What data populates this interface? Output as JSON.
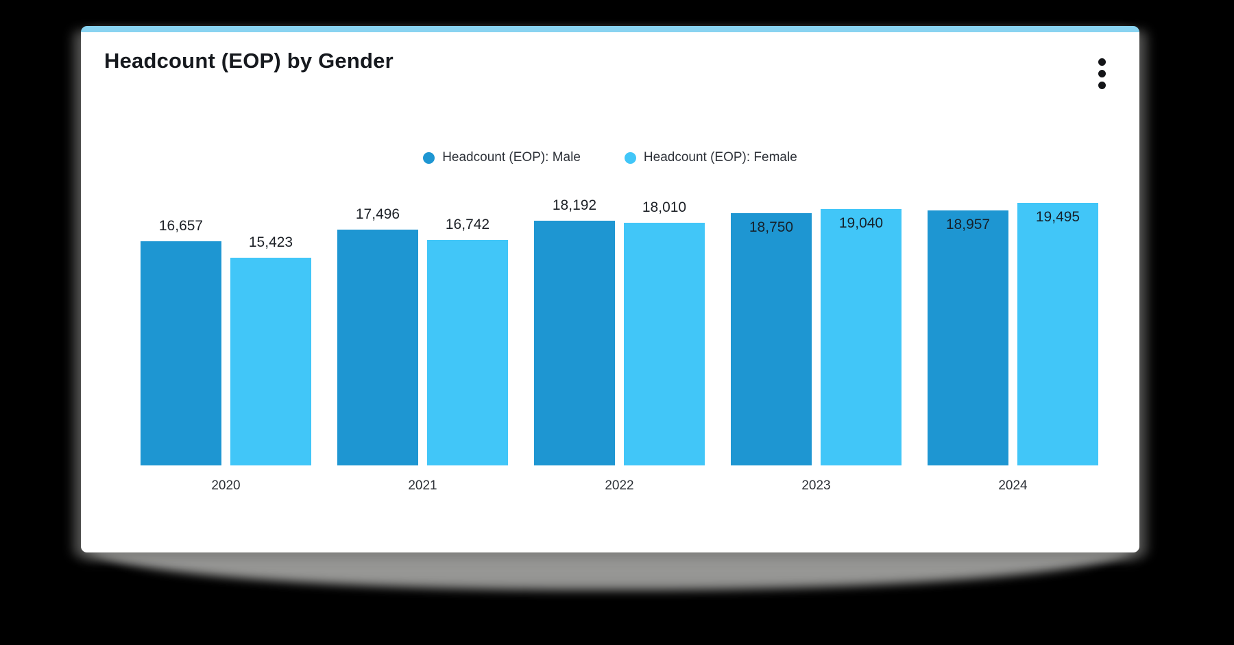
{
  "header": {
    "title": "Headcount (EOP) by Gender",
    "menu_icon": "kebab-vertical"
  },
  "legend": {
    "items": [
      {
        "label": "Headcount (EOP): Male",
        "color": "#1E96D2"
      },
      {
        "label": "Headcount (EOP): Female",
        "color": "#41C6F8"
      }
    ]
  },
  "chart_data": {
    "type": "bar",
    "title": "Headcount (EOP) by Gender",
    "categories": [
      "2020",
      "2021",
      "2022",
      "2023",
      "2024"
    ],
    "series": [
      {
        "name": "Headcount (EOP): Male",
        "color": "#1E96D2",
        "values": [
          16657,
          17496,
          18192,
          18750,
          18957
        ]
      },
      {
        "name": "Headcount (EOP): Female",
        "color": "#41C6F8",
        "values": [
          15423,
          16742,
          18010,
          19040,
          19495
        ]
      }
    ],
    "value_label_position_by_category": [
      "above",
      "above",
      "above",
      "inside",
      "inside"
    ],
    "value_label_format": "#,###",
    "ylim": [
      0,
      19495
    ],
    "grid": false,
    "axis_lines": false,
    "legend_position": "top",
    "xlabel": "",
    "ylabel": ""
  },
  "colors": {
    "page_background": "#000000",
    "card_background": "#FFFFFF",
    "accent_top_border": "#89D3F1",
    "male_bar": "#1E96D2",
    "female_bar": "#41C6F8",
    "floor_shadow": "#A0A09E",
    "title_text": "#16191E",
    "label_text": "#1D2127"
  }
}
